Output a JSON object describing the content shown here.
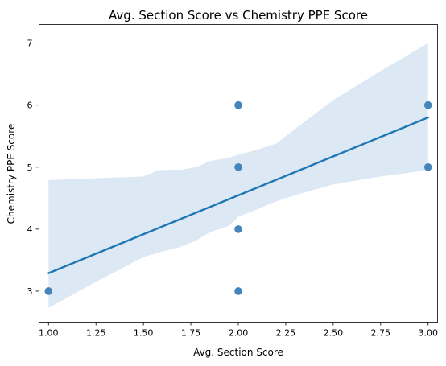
{
  "chart_data": {
    "type": "scatter",
    "title": "Avg. Section Score vs Chemistry PPE Score",
    "xlabel": "Avg. Section Score",
    "ylabel": "Chemistry PPE Score",
    "xlim": [
      0.95,
      3.05
    ],
    "ylim": [
      2.5,
      7.3
    ],
    "grid": false,
    "legend": "none",
    "x_ticks": [
      1.0,
      1.25,
      1.5,
      1.75,
      2.0,
      2.25,
      2.5,
      2.75,
      3.0
    ],
    "x_tick_labels": [
      "1.00",
      "1.25",
      "1.50",
      "1.75",
      "2.00",
      "2.25",
      "2.50",
      "2.75",
      "3.00"
    ],
    "y_ticks": [
      3,
      4,
      5,
      6,
      7
    ],
    "y_tick_labels": [
      "3",
      "4",
      "5",
      "6",
      "7"
    ],
    "points": [
      {
        "x": 1.0,
        "y": 3
      },
      {
        "x": 2.0,
        "y": 3
      },
      {
        "x": 2.0,
        "y": 4
      },
      {
        "x": 2.0,
        "y": 5
      },
      {
        "x": 2.0,
        "y": 6
      },
      {
        "x": 3.0,
        "y": 5
      },
      {
        "x": 3.0,
        "y": 6
      }
    ],
    "regression_line": {
      "x": [
        1.0,
        3.0
      ],
      "y": [
        3.29,
        5.8
      ]
    },
    "confidence_band": {
      "x": [
        1.0,
        1.25,
        1.5,
        1.58,
        1.7,
        1.78,
        1.85,
        1.95,
        2.0,
        2.1,
        2.2,
        2.3,
        2.5,
        2.75,
        3.0
      ],
      "upper": [
        4.79,
        4.82,
        4.85,
        4.95,
        4.96,
        5.0,
        5.1,
        5.15,
        5.2,
        5.28,
        5.38,
        5.62,
        6.08,
        6.55,
        7.0
      ],
      "lower": [
        2.73,
        3.15,
        3.55,
        3.62,
        3.72,
        3.82,
        3.95,
        4.05,
        4.2,
        4.32,
        4.45,
        4.55,
        4.72,
        4.85,
        4.95
      ]
    },
    "colors": {
      "points": "#3a7fb8",
      "line": "#1f77b4",
      "band": "#dce8f4"
    }
  }
}
